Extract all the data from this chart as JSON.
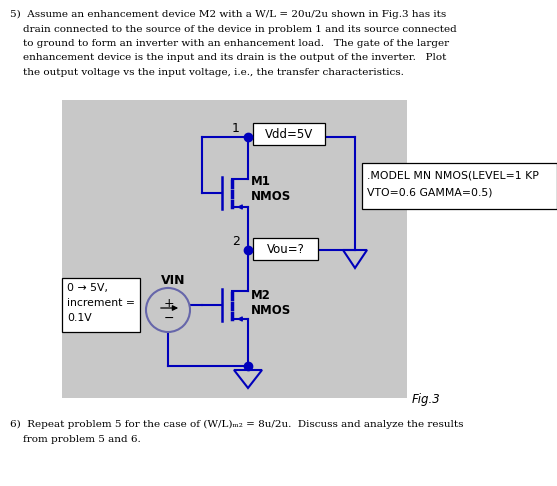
{
  "bg_color": "#ffffff",
  "circuit_bg": "#c0c0c0",
  "blue": "#0000bb",
  "black": "#000000",
  "fig_label": "Fig.3",
  "model_line1": ".MODEL MN NMOS(LEVEL=1 KP",
  "model_line2": "VTO=0.6 GAMMA=0.5)",
  "vin_line1": "0 → 5V,",
  "vin_line2": "increment =",
  "vin_line3": "0.1V",
  "vdd_text": "Vdd=5V",
  "vou_text": "Vou=?",
  "node1": "1",
  "node2": "2",
  "m1_text": "M1",
  "m2_text": "M2",
  "nmos_text": "NMOS",
  "vin_label": "VIN",
  "p5_lines": [
    "5)  Assume an enhancement device M2 with a W/L = 20u/2u shown in Fig.3 has its",
    "    drain connected to the source of the device in problem 1 and its source connected",
    "    to ground to form an inverter with an enhancement load.   The gate of the larger",
    "    enhancement device is the input and its drain is the output of the inverter.   Plot",
    "    the output voltage vs the input voltage, i.e., the transfer characteristics."
  ],
  "p6_lines": [
    "6)  Repeat problem 5 for the case of (W/L)ₘ₂ = 8u/2u.  Discuss and analyze the results",
    "    from problem 5 and 6."
  ]
}
